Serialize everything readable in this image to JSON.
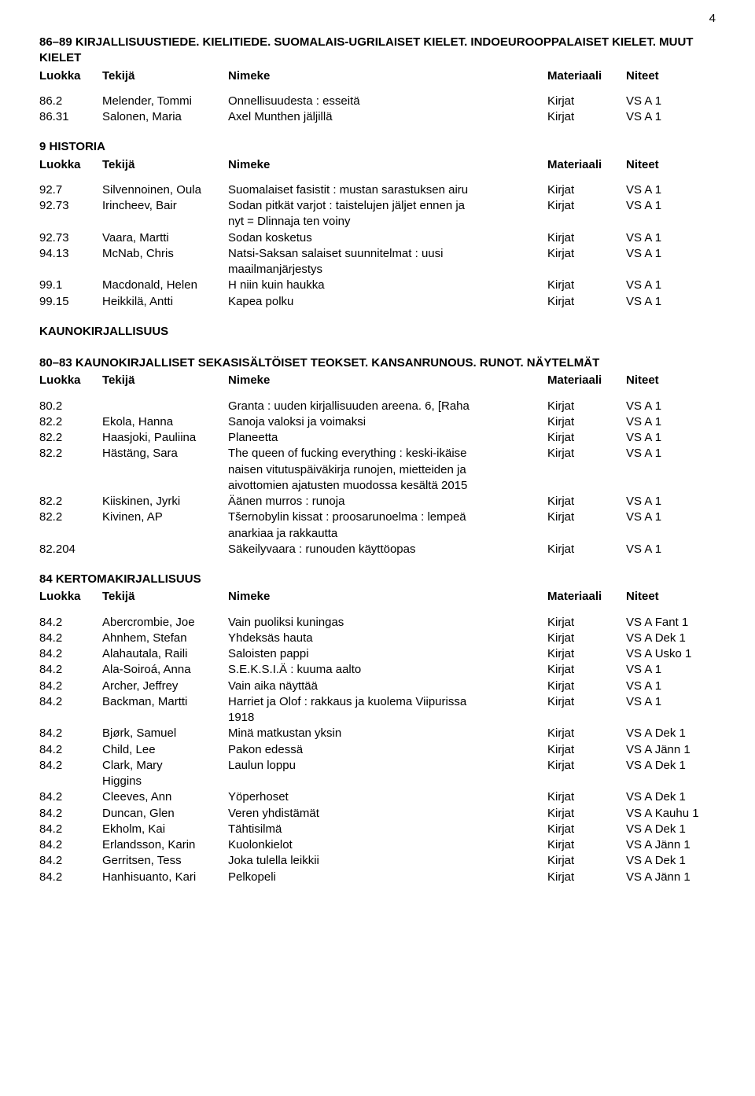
{
  "pageNumber": "4",
  "columns": {
    "luokka": "Luokka",
    "tekija": "Tekijä",
    "nimeke": "Nimeke",
    "mat": "Materiaali",
    "niteet": "Niteet"
  },
  "sections": [
    {
      "heading": "86–89 KIRJALLISUUSTIEDE. KIELITIEDE. SUOMALAIS-UGRILAISET KIELET. INDOEUROOPPALAISET KIELET. MUUT KIELET",
      "showHeader": true,
      "rows": [
        {
          "l": "86.2",
          "t": "Melender, Tommi",
          "n": "Onnellisuudesta : esseitä",
          "m": "Kirjat",
          "x": "VS A 1"
        },
        {
          "l": "86.31",
          "t": "Salonen, Maria",
          "n": "Axel Munthen jäljillä",
          "m": "Kirjat",
          "x": "VS A 1"
        }
      ]
    },
    {
      "heading": "9 HISTORIA",
      "showHeader": true,
      "gapBefore": true,
      "rows": [
        {
          "l": "92.7",
          "t": "Silvennoinen, Oula",
          "n": "Suomalaiset fasistit : mustan sarastuksen airu",
          "m": "Kirjat",
          "x": "VS A 1"
        },
        {
          "l": "92.73",
          "t": "Irincheev, Bair",
          "n": "Sodan pitkät varjot : taistelujen jäljet ennen ja",
          "n2": "nyt = Dlinnaja ten voiny",
          "m": "Kirjat",
          "x": "VS A 1"
        },
        {
          "l": "92.73",
          "t": "Vaara, Martti",
          "n": "Sodan kosketus",
          "m": "Kirjat",
          "x": "VS A 1"
        },
        {
          "l": "94.13",
          "t": "McNab, Chris",
          "n": "Natsi-Saksan salaiset suunnitelmat : uusi",
          "n2": "maailmanjärjestys",
          "m": "Kirjat",
          "x": "VS A 1"
        },
        {
          "l": "99.1",
          "t": "Macdonald, Helen",
          "n": "H niin kuin haukka",
          "m": "Kirjat",
          "x": "VS A 1"
        },
        {
          "l": "99.15",
          "t": "Heikkilä, Antti",
          "n": "Kapea polku",
          "m": "Kirjat",
          "x": "VS A 1"
        }
      ]
    },
    {
      "heading": "KAUNOKIRJALLISUUS",
      "showHeader": false,
      "gapBefore": true,
      "rows": []
    },
    {
      "heading": "80–83 KAUNOKIRJALLISET SEKASISÄLTÖISET TEOKSET. KANSANRUNOUS. RUNOT. NÄYTELMÄT",
      "showHeader": true,
      "gapBefore": true,
      "rows": [
        {
          "l": "80.2",
          "t": "",
          "n": "Granta : uuden kirjallisuuden areena. 6, [Raha",
          "m": "Kirjat",
          "x": "VS A 1"
        },
        {
          "l": "82.2",
          "t": "Ekola, Hanna",
          "n": "Sanoja valoksi ja voimaksi",
          "m": "Kirjat",
          "x": "VS A 1"
        },
        {
          "l": "82.2",
          "t": "Haasjoki, Pauliina",
          "n": "Planeetta",
          "m": "Kirjat",
          "x": "VS A 1"
        },
        {
          "l": "82.2",
          "t": "Hästäng, Sara",
          "n": "The queen of fucking everything : keski-ikäise",
          "n2": "naisen vitutuspäiväkirja runojen, mietteiden ja",
          "n3": "aivottomien ajatusten muodossa kesältä 2015",
          "m": "Kirjat",
          "x": "VS A 1"
        },
        {
          "l": "82.2",
          "t": "Kiiskinen, Jyrki",
          "n": "Äänen murros : runoja",
          "m": "Kirjat",
          "x": "VS A 1"
        },
        {
          "l": "82.2",
          "t": "Kivinen, AP",
          "n": "Tšernobylin kissat : proosarunoelma : lempeä",
          "n2": "anarkiaa ja rakkautta",
          "m": "Kirjat",
          "x": "VS A 1"
        },
        {
          "l": "82.204",
          "t": "",
          "n": "Säkeilyvaara : runouden käyttöopas",
          "m": "Kirjat",
          "x": "VS A 1"
        }
      ]
    },
    {
      "heading": "84 KERTOMAKIRJALLISUUS",
      "showHeader": true,
      "gapBefore": true,
      "rows": [
        {
          "l": "84.2",
          "t": "Abercrombie, Joe",
          "n": "Vain puoliksi kuningas",
          "m": "Kirjat",
          "x": "VS A Fant 1"
        },
        {
          "l": "84.2",
          "t": "Ahnhem, Stefan",
          "n": "Yhdeksäs hauta",
          "m": "Kirjat",
          "x": "VS A Dek 1"
        },
        {
          "l": "84.2",
          "t": "Alahautala, Raili",
          "n": "Saloisten pappi",
          "m": "Kirjat",
          "x": "VS A Usko 1"
        },
        {
          "l": "84.2",
          "t": "Ala-Soiroá, Anna",
          "n": "S.E.K.S.I.Ä : kuuma aalto",
          "m": "Kirjat",
          "x": "VS A 1"
        },
        {
          "l": "84.2",
          "t": "Archer, Jeffrey",
          "n": "Vain aika näyttää",
          "m": "Kirjat",
          "x": "VS A 1"
        },
        {
          "l": "84.2",
          "t": "Backman, Martti",
          "n": "Harriet ja Olof : rakkaus ja kuolema Viipurissa",
          "n2": "1918",
          "m": "Kirjat",
          "x": "VS A 1"
        },
        {
          "l": "84.2",
          "t": "Bjørk, Samuel",
          "n": "Minä matkustan yksin",
          "m": "Kirjat",
          "x": "VS A Dek 1"
        },
        {
          "l": "84.2",
          "t": "Child, Lee",
          "n": "Pakon edessä",
          "m": "Kirjat",
          "x": "VS A Jänn 1"
        },
        {
          "l": "84.2",
          "t": "Clark, Mary",
          "t2": "Higgins",
          "n": "Laulun loppu",
          "m": "Kirjat",
          "x": "VS A Dek 1"
        },
        {
          "l": "84.2",
          "t": "Cleeves, Ann",
          "n": "Yöperhoset",
          "m": "Kirjat",
          "x": "VS A Dek 1"
        },
        {
          "l": "84.2",
          "t": "Duncan, Glen",
          "n": "Veren yhdistämät",
          "m": "Kirjat",
          "x": "VS A Kauhu 1"
        },
        {
          "l": "84.2",
          "t": "Ekholm, Kai",
          "n": "Tähtisilmä",
          "m": "Kirjat",
          "x": "VS A Dek 1"
        },
        {
          "l": "84.2",
          "t": "Erlandsson, Karin",
          "n": "Kuolonkielot",
          "m": "Kirjat",
          "x": "VS A Jänn 1"
        },
        {
          "l": "84.2",
          "t": "Gerritsen, Tess",
          "n": "Joka tulella leikkii",
          "m": "Kirjat",
          "x": "VS A Dek 1"
        },
        {
          "l": "84.2",
          "t": "Hanhisuanto, Kari",
          "n": "Pelkopeli",
          "m": "Kirjat",
          "x": "VS A Jänn 1"
        }
      ]
    }
  ]
}
